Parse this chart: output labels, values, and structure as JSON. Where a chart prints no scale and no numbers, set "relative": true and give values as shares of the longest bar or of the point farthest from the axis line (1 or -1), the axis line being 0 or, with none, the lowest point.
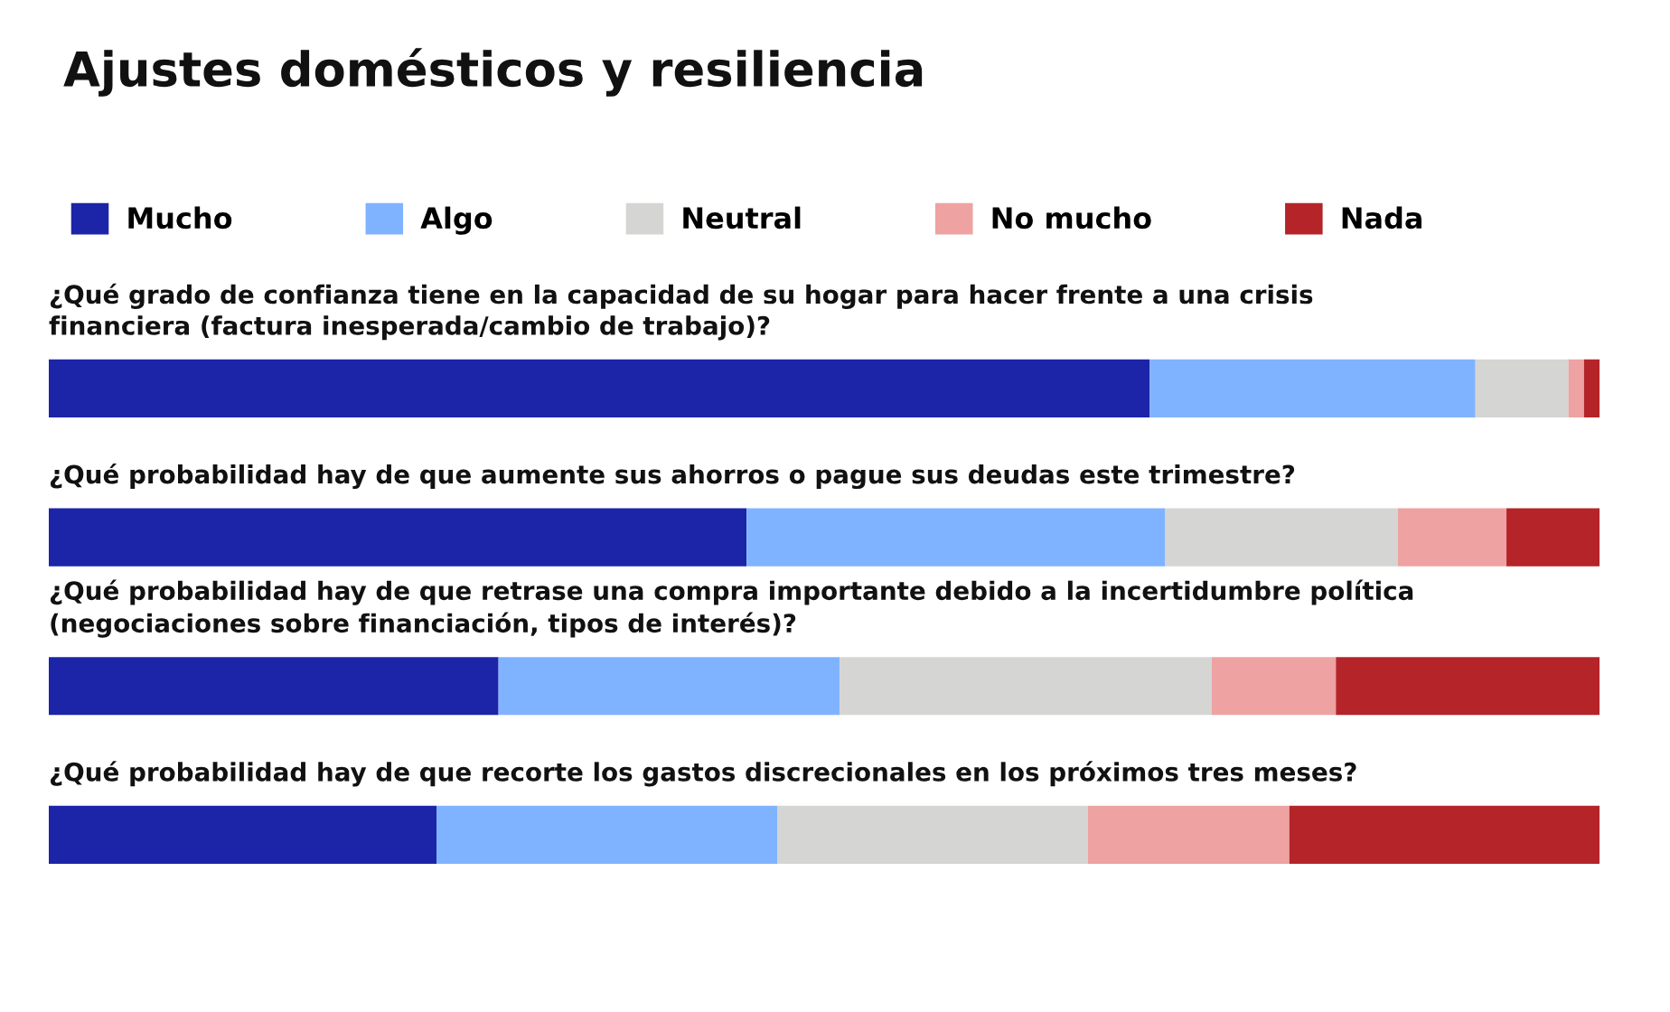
{
  "chart_data": {
    "type": "bar",
    "title": "Ajustes domésticos y resiliencia",
    "orientation": "horizontal",
    "stacked": true,
    "relative": true,
    "legend": "top",
    "categories": [
      "¿Qué grado de confianza tiene en la capacidad de su hogar para hacer frente a una crisis financiera (factura inesperada/cambio de trabajo)?",
      "¿Qué probabilidad hay de que aumente sus ahorros o pague sus deudas este trimestre?",
      "¿Qué probabilidad hay de que retrase una compra importante debido a la incertidumbre política (negociaciones sobre financiación, tipos de interés)?",
      "¿Qué probabilidad hay de que recorte los gastos discrecionales en los próximos tres meses?"
    ],
    "series": [
      {
        "name": "Mucho",
        "color": "#1c24a8",
        "values": [
          0.71,
          0.45,
          0.29,
          0.25
        ]
      },
      {
        "name": "Algo",
        "color": "#80b3ff",
        "values": [
          0.21,
          0.27,
          0.22,
          0.22
        ]
      },
      {
        "name": "Neutral",
        "color": "#d5d5d3",
        "values": [
          0.06,
          0.15,
          0.24,
          0.2
        ]
      },
      {
        "name": "No mucho",
        "color": "#eea2a2",
        "values": [
          0.01,
          0.07,
          0.08,
          0.13
        ]
      },
      {
        "name": "Nada",
        "color": "#b42428",
        "values": [
          0.01,
          0.06,
          0.17,
          0.2
        ]
      }
    ]
  }
}
